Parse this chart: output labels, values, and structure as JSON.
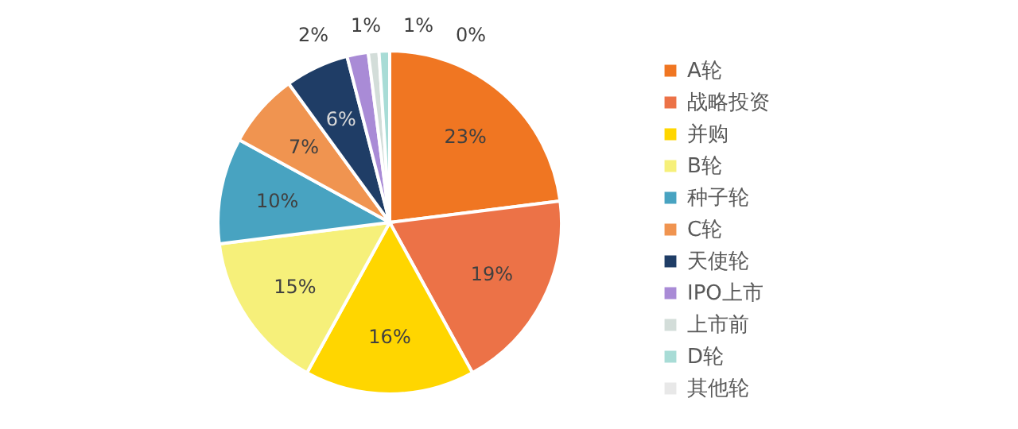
{
  "chart_data": {
    "type": "pie",
    "categories": [
      "A轮",
      "战略投资",
      "并购",
      "B轮",
      "种子轮",
      "C轮",
      "天使轮",
      "IPO上市",
      "上市前",
      "D轮",
      "其他轮"
    ],
    "values": [
      23,
      19,
      16,
      15,
      10,
      7,
      6,
      2,
      1,
      1,
      0
    ],
    "colors": [
      "#f07622",
      "#ec7247",
      "#ffd600",
      "#f6f07a",
      "#48a3c1",
      "#f09450",
      "#1f3d66",
      "#a98bd6",
      "#d3ddd9",
      "#a8dcd6",
      "#e8e8e8"
    ],
    "value_labels": [
      "23%",
      "19%",
      "16%",
      "15%",
      "10%",
      "7%",
      "6%",
      "2%",
      "1%",
      "1%",
      "0%"
    ],
    "legend": "right"
  }
}
